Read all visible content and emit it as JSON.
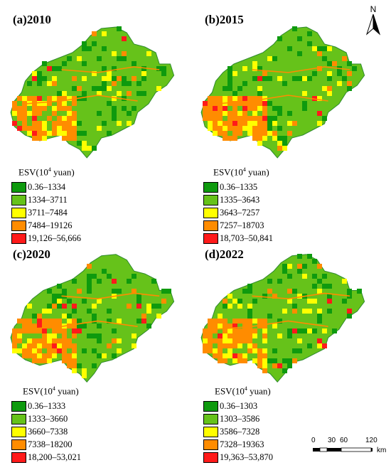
{
  "panels": [
    {
      "title": "(a)2010",
      "legend_title": "ESV(10",
      "legend_sup": "4",
      "legend_unit": " yuan)",
      "classes": [
        "0.36–1334",
        "1334–3711",
        "3711–7484",
        "7484–19126",
        "19,126–56,666"
      ]
    },
    {
      "title": "(b)2015",
      "legend_title": "ESV(10",
      "legend_sup": "4",
      "legend_unit": " yuan)",
      "classes": [
        "0.36–1335",
        "1335–3643",
        "3643–7257",
        "7257–18703",
        "18,703–50,841"
      ]
    },
    {
      "title": "(c)2020",
      "legend_title": "ESV(10",
      "legend_sup": "4",
      "legend_unit": " yuan)",
      "classes": [
        "0.36–1333",
        "1333–3660",
        "3660–7338",
        "7338–18200",
        "18,200–53,021"
      ]
    },
    {
      "title": "(d)2022",
      "legend_title": "ESV(10",
      "legend_sup": "4",
      "legend_unit": " yuan)",
      "classes": [
        "0.36–1303",
        "1303–3586",
        "3586–7328",
        "7328–19363",
        "19,363–53,870"
      ]
    }
  ],
  "class_colors": [
    "#0e9a0e",
    "#66c21a",
    "#ffff00",
    "#ff8c00",
    "#ff1a1a"
  ],
  "north_label": "N",
  "scale": {
    "ticks": [
      "0",
      "30",
      "60",
      "120"
    ],
    "unit": "km"
  }
}
